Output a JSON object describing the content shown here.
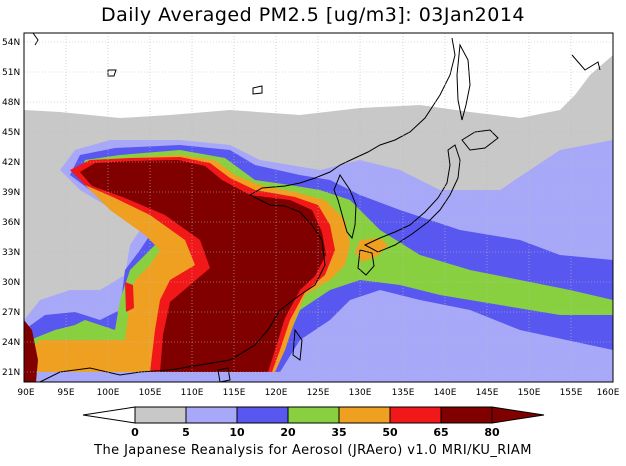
{
  "title": "Daily Averaged PM2.5 [ug/m3]: 03Jan2014",
  "footer": "The Japanese Reanalysis for Aerosol (JRAero) v1.0 MRI/KU_RIAM",
  "map": {
    "lon_range": [
      90,
      160
    ],
    "lat_range": [
      20,
      55
    ],
    "lon_ticks": [
      "90E",
      "95E",
      "100E",
      "105E",
      "110E",
      "115E",
      "120E",
      "125E",
      "130E",
      "135E",
      "140E",
      "145E",
      "150E",
      "155E",
      "160E"
    ],
    "lat_ticks": [
      "54N",
      "51N",
      "48N",
      "45N",
      "42N",
      "39N",
      "36N",
      "33N",
      "30N",
      "27N",
      "24N",
      "21N"
    ],
    "grid": true
  },
  "colorbar": {
    "levels": [
      "0",
      "5",
      "10",
      "20",
      "35",
      "50",
      "65",
      "80"
    ],
    "colors": [
      "#ffffff",
      "#c8c8c8",
      "#a8a8f8",
      "#5858f0",
      "#88d040",
      "#f0a020",
      "#f01818",
      "#800000"
    ]
  }
}
